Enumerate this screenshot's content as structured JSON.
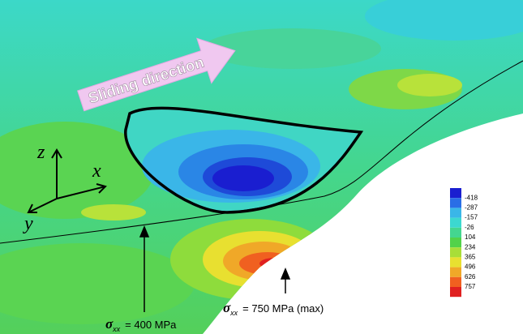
{
  "caption": "Sliding direction",
  "axes": {
    "z": "z",
    "x": "x",
    "y": "y"
  },
  "legend": {
    "labels": [
      -418,
      -287,
      -157,
      -26,
      104,
      234,
      365,
      496,
      626,
      757
    ]
  },
  "annotations": [
    {
      "symbol": "σ",
      "subscript": "xx",
      "text": "= 400 MPa"
    },
    {
      "symbol": "σ",
      "subscript": "xx",
      "text": "= 750 MPa (max)"
    }
  ]
}
